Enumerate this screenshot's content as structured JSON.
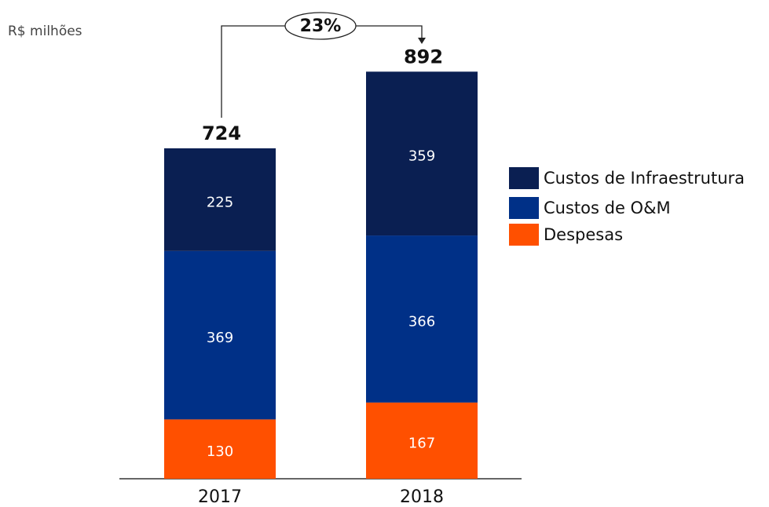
{
  "chart_data": {
    "type": "stacked_bar",
    "subtitle": "R$ milhões",
    "categories": [
      "2017",
      "2018"
    ],
    "series": [
      {
        "name": "Custos de Infraestrutura",
        "color": "#0a1f52",
        "values": [
          225,
          359
        ]
      },
      {
        "name": "Custos de O&M",
        "color": "#003087",
        "values": [
          369,
          366
        ]
      },
      {
        "name": "Despesas",
        "color": "#ff5000",
        "values": [
          130,
          167
        ]
      }
    ],
    "totals": [
      724,
      892
    ],
    "growth_annotation": "23%",
    "legend": "right"
  }
}
